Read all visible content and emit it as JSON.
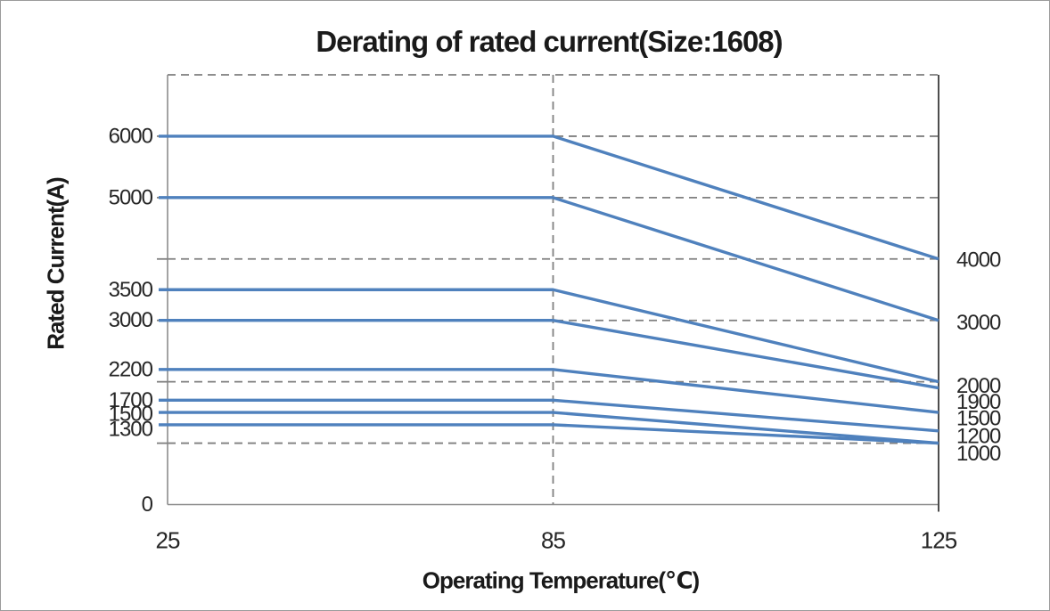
{
  "chart": {
    "title": "Derating of rated current(Size:1608)",
    "x_axis_title": "Operating Temperature(℃)",
    "y_axis_title": "Rated Current(A)"
  },
  "chart_data": {
    "type": "line",
    "title": "Derating of rated current(Size:1608)",
    "xlabel": "Operating Temperature(℃)",
    "ylabel": "Rated Current(A)",
    "x_categories": [
      "25",
      "85",
      "125"
    ],
    "x_layout_note": "categories evenly spaced: 25 at left edge, 85 at center, 125 at right edge",
    "ylim": [
      0,
      7000
    ],
    "y_gridlines": [
      1000,
      2000,
      3000,
      4000,
      5000,
      6000,
      7000
    ],
    "grid_style": "dashed",
    "vertical_guide_at_category": "85",
    "legend": "none",
    "line_color": "#4F81BD",
    "grid_color": "#7F7F7F",
    "axis_color": "#8C8C8C",
    "right_axis_color": "#4D4D4D",
    "text_color": "#262626",
    "series": [
      {
        "name": "6000",
        "values": [
          6000,
          6000,
          4000
        ]
      },
      {
        "name": "5000",
        "values": [
          5000,
          5000,
          3000
        ]
      },
      {
        "name": "3500",
        "values": [
          3500,
          3500,
          2000
        ]
      },
      {
        "name": "3000",
        "values": [
          3000,
          3000,
          1900
        ]
      },
      {
        "name": "2200",
        "values": [
          2200,
          2200,
          1500
        ]
      },
      {
        "name": "1700",
        "values": [
          1700,
          1700,
          1200
        ]
      },
      {
        "name": "1500",
        "values": [
          1500,
          1500,
          1000
        ]
      },
      {
        "name": "1300",
        "values": [
          1300,
          1300,
          1000
        ]
      }
    ],
    "left_value_labels": [
      {
        "text": "6000",
        "value": 6000,
        "dy": 0
      },
      {
        "text": "5000",
        "value": 5000,
        "dy": 0
      },
      {
        "text": "3500",
        "value": 3500,
        "dy": 0
      },
      {
        "text": "3000",
        "value": 3000,
        "dy": 0
      },
      {
        "text": "2200",
        "value": 2200,
        "dy": 0
      },
      {
        "text": "1700",
        "value": 1700,
        "dy": 0
      },
      {
        "text": "1500",
        "value": 1500,
        "dy": 2
      },
      {
        "text": "1300",
        "value": 1300,
        "dy": 5
      },
      {
        "text": "0",
        "value": 0,
        "dy": 0
      }
    ],
    "right_value_labels": [
      {
        "text": "4000",
        "value": 4000,
        "dy": 1
      },
      {
        "text": "3000",
        "value": 3000,
        "dy": 3
      },
      {
        "text": "2000",
        "value": 2000,
        "dy": 5
      },
      {
        "text": "1900",
        "value": 1900,
        "dy": 16
      },
      {
        "text": "1500",
        "value": 1500,
        "dy": 7
      },
      {
        "text": "1200",
        "value": 1200,
        "dy": 6
      },
      {
        "text": "1000",
        "value": 1000,
        "dy": 12
      }
    ]
  }
}
